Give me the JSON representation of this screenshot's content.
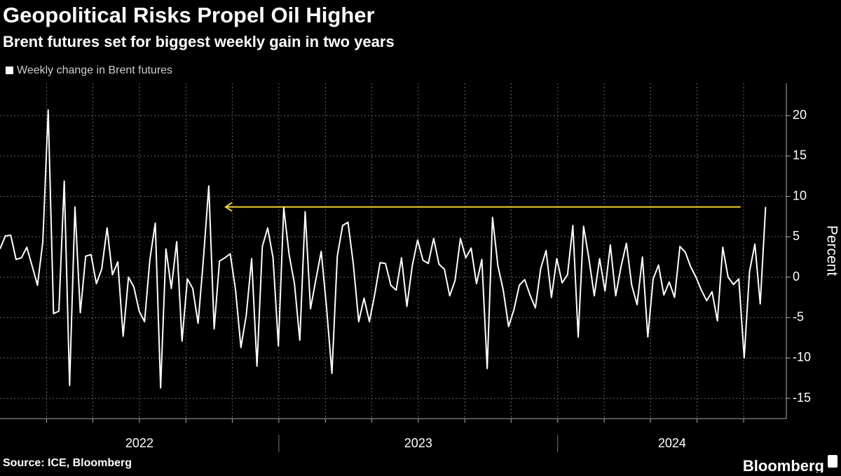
{
  "chart_data": {
    "type": "line",
    "title": "Geopolitical Risks Propel Oil Higher",
    "subtitle": "Brent futures set for biggest weekly gain in two years",
    "y_label": "Percent",
    "source": "Source: ICE, Bloomberg",
    "logo": "Bloomberg",
    "x": [
      2022,
      2022.0192,
      2022.0384,
      2022.0576,
      2022.0768,
      2022.096,
      2022.1152,
      2022.1344,
      2022.1536,
      2022.1728,
      2022.192,
      2022.2112,
      2022.2304,
      2022.2496,
      2022.2688,
      2022.288,
      2022.3072,
      2022.3264,
      2022.3456,
      2022.3648,
      2022.384,
      2022.4032,
      2022.4224,
      2022.4416,
      2022.4608,
      2022.48,
      2022.4992,
      2022.5184,
      2022.5376,
      2022.5568,
      2022.576,
      2022.5952,
      2022.6144,
      2022.6336,
      2022.6528,
      2022.672,
      2022.6912,
      2022.7104,
      2022.7296,
      2022.7488,
      2022.768,
      2022.7872,
      2022.8064,
      2022.8256,
      2022.8448,
      2022.864,
      2022.8832,
      2022.9024,
      2022.9216,
      2022.9408,
      2022.96,
      2022.9792,
      2022.9984,
      2023.0176,
      2023.0368,
      2023.056,
      2023.0752,
      2023.0944,
      2023.1136,
      2023.1328,
      2023.152,
      2023.1712,
      2023.1904,
      2023.2096,
      2023.2288,
      2023.248,
      2023.2672,
      2023.2864,
      2023.3056,
      2023.3248,
      2023.344,
      2023.3632,
      2023.3824,
      2023.4016,
      2023.4208,
      2023.44,
      2023.4592,
      2023.4784,
      2023.4976,
      2023.5168,
      2023.536,
      2023.5552,
      2023.5744,
      2023.5936,
      2023.6128,
      2023.632,
      2023.6512,
      2023.6704,
      2023.6896,
      2023.7088,
      2023.728,
      2023.7472,
      2023.7664,
      2023.7856,
      2023.8048,
      2023.824,
      2023.8432,
      2023.8624,
      2023.8816,
      2023.9008,
      2023.92,
      2023.9392,
      2023.9584,
      2023.9776,
      2023.9968,
      2024.016,
      2024.0352,
      2024.0544,
      2024.0736,
      2024.0928,
      2024.112,
      2024.1312,
      2024.1504,
      2024.1696,
      2024.1888,
      2024.208,
      2024.2272,
      2024.2464,
      2024.2656,
      2024.2848,
      2024.304,
      2024.3232,
      2024.3424,
      2024.3616,
      2024.3808,
      2024.4,
      2024.4192,
      2024.4384,
      2024.4576,
      2024.4768,
      2024.496,
      2024.5152,
      2024.5344,
      2024.5536,
      2024.5728,
      2024.592,
      2024.6112,
      2024.6304,
      2024.6496,
      2024.6688,
      2024.688,
      2024.7072,
      2024.7264,
      2024.7456
    ],
    "series": [
      {
        "name": "Weekly change in Brent futures",
        "color": "#ffffff",
        "values": [
          3.5,
          5.1,
          5.2,
          2.2,
          2.4,
          3.7,
          1.4,
          -1,
          4.4,
          20.7,
          -4.5,
          -4.2,
          11.9,
          -13.4,
          8.7,
          -4.4,
          2.6,
          2.8,
          -0.8,
          1.0,
          6.1,
          0.3,
          1.9,
          -7.3,
          0,
          -1.2,
          -4.2,
          -5.5,
          2.2,
          6.7,
          -13.7,
          3.5,
          -1.4,
          4.4,
          -7.9,
          -0.2,
          -1.4,
          -5.7,
          2.3,
          11.3,
          -6.4,
          2.0,
          2.4,
          2.9,
          -1.6,
          -8.7,
          -4.7,
          2.3,
          -11,
          3.8,
          6.1,
          2.4,
          -8.5,
          8.6,
          2.8,
          -0.8,
          -7.8,
          8.1,
          -3.9,
          -0.3,
          3.2,
          -3.8,
          -11.9,
          2.6,
          6.4,
          6.8,
          1.6,
          -5.5,
          -2.6,
          -5.5,
          -2.1,
          1.8,
          1.7,
          -1,
          -1.6,
          2.4,
          -3.6,
          1.4,
          4.6,
          2.1,
          1.7,
          4.8,
          1.6,
          1.0,
          -2.3,
          -0.4,
          4.8,
          2.4,
          3.6,
          -0.8,
          2.2,
          -11.3,
          7.4,
          1.4,
          -1.6,
          -6.1,
          -4.0,
          -1.0,
          -0.3,
          -2.2,
          -3.8,
          1.1,
          3.3,
          -2.5,
          2.3,
          -0.7,
          0.3,
          6.4,
          -7.4,
          6.3,
          2.3,
          -2.3,
          2.3,
          -1.7,
          4.0,
          -2.3,
          1.3,
          4.2,
          -1.0,
          -3.4,
          2.5,
          -7.4,
          -0.2,
          1.5,
          -2.2,
          -0.6,
          -2.5,
          3.8,
          3.1,
          1.3,
          0,
          -1.6,
          -2.9,
          -1.8,
          -5.4,
          3.7,
          0,
          -0.9,
          -0.2,
          -10.0,
          0.7,
          4.1,
          -3.3,
          8.7
        ]
      }
    ],
    "arrow": {
      "x_from": 2024.656,
      "x_to": 2022.809,
      "y": 8.7,
      "color": "#f2d22e"
    },
    "xlim": [
      2022,
      2024.82
    ],
    "xticks": [
      {
        "value": 2022,
        "label": "2022"
      },
      {
        "value": 2023,
        "label": "2023"
      },
      {
        "value": 2024,
        "label": "2024"
      }
    ],
    "x_minor_ticks": [
      2022.167,
      2022.333,
      2022.5,
      2022.667,
      2022.833,
      2023,
      2023.167,
      2023.333,
      2023.5,
      2023.667,
      2023.833,
      2024,
      2024.167,
      2024.333,
      2024.5,
      2024.667
    ],
    "ylim": [
      -17.5,
      24
    ],
    "yticks": [
      20,
      15,
      10,
      5,
      0,
      -5,
      -10,
      -15
    ],
    "grid": true,
    "y_axis_side": "right"
  }
}
